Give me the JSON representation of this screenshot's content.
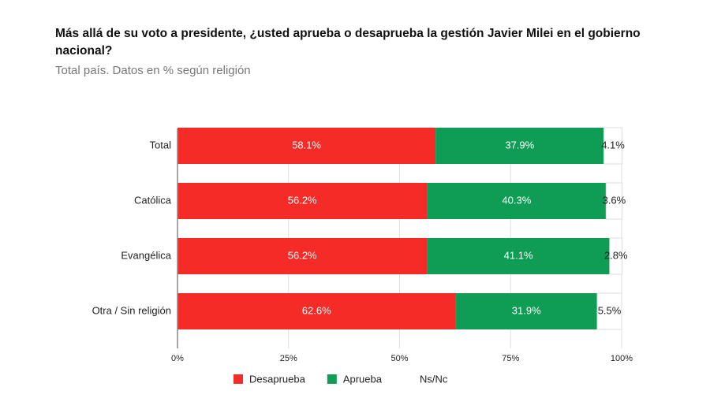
{
  "chart_data": {
    "type": "stacked-bar-horizontal",
    "title": "Más allá de su voto a presidente, ¿usted aprueba o desaprueba la gestión Javier Milei en el gobierno nacional?",
    "subtitle": "Total país. Datos en % según religión",
    "categories": [
      "Total",
      "Católica",
      "Evangélica",
      "Otra / Sin religión"
    ],
    "series": [
      {
        "name": "Desaprueba",
        "color": "#f42b27",
        "values": [
          58.1,
          56.2,
          56.2,
          62.6
        ],
        "value_labels": [
          "58.1%",
          "56.2%",
          "56.2%",
          "62.6%"
        ]
      },
      {
        "name": "Aprueba",
        "color": "#0f9d55",
        "values": [
          37.9,
          40.3,
          41.1,
          31.9
        ],
        "value_labels": [
          "37.9%",
          "40.3%",
          "41.1%",
          "31.9%"
        ]
      },
      {
        "name": "Ns/Nc",
        "color": "#ffffff",
        "values": [
          4.1,
          3.6,
          2.8,
          5.5
        ],
        "value_labels": [
          "4.1%",
          "3.6%",
          "2.8%",
          "5.5%"
        ]
      }
    ],
    "xlim": [
      0,
      100
    ],
    "xticks": [
      {
        "value": 0,
        "label": "0%"
      },
      {
        "value": 25,
        "label": "25%"
      },
      {
        "value": 50,
        "label": "50%"
      },
      {
        "value": 75,
        "label": "75%"
      },
      {
        "value": 100,
        "label": "100%"
      }
    ],
    "grid": true
  }
}
